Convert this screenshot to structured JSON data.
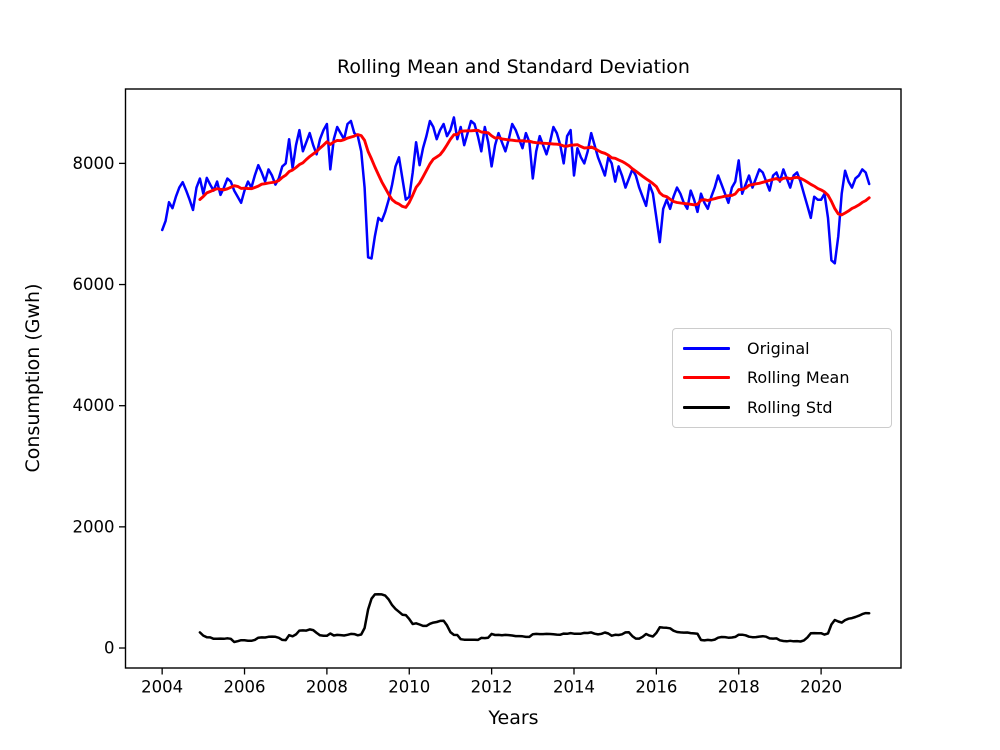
{
  "chart_data": {
    "type": "line",
    "title": "Rolling Mean and Standard Deviation",
    "xlabel": "Years",
    "ylabel": "Consumption (Gwh)",
    "grid": false,
    "legend_position": "center right",
    "xlim": [
      2003.11,
      2021.94
    ],
    "ylim": [
      -330,
      9228
    ],
    "x_ticks": [
      2004,
      2006,
      2008,
      2010,
      2012,
      2014,
      2016,
      2018,
      2020
    ],
    "y_ticks": [
      0,
      2000,
      4000,
      6000,
      8000
    ],
    "x_start": 2004.0,
    "x_step": "monthly",
    "rolling_window": 12,
    "axis_color": "#000000",
    "series": [
      {
        "name": "Original",
        "color": "#0000ff",
        "values": [
          6900,
          7050,
          7360,
          7260,
          7450,
          7600,
          7690,
          7550,
          7400,
          7230,
          7600,
          7750,
          7500,
          7760,
          7650,
          7550,
          7700,
          7480,
          7600,
          7750,
          7700,
          7550,
          7450,
          7350,
          7550,
          7700,
          7600,
          7800,
          7970,
          7850,
          7700,
          7900,
          7800,
          7650,
          7750,
          7950,
          8000,
          8400,
          7920,
          8300,
          8550,
          8200,
          8350,
          8500,
          8300,
          8150,
          8400,
          8550,
          8650,
          7900,
          8400,
          8600,
          8500,
          8400,
          8650,
          8700,
          8500,
          8450,
          8200,
          7600,
          6450,
          6430,
          6800,
          7100,
          7050,
          7200,
          7400,
          7650,
          7950,
          8100,
          7750,
          7400,
          7450,
          7850,
          8350,
          7970,
          8250,
          8450,
          8700,
          8600,
          8400,
          8550,
          8650,
          8450,
          8550,
          8760,
          8400,
          8600,
          8300,
          8500,
          8700,
          8650,
          8450,
          8200,
          8600,
          8350,
          7950,
          8300,
          8500,
          8350,
          8200,
          8400,
          8650,
          8550,
          8400,
          8250,
          8500,
          8350,
          7750,
          8200,
          8450,
          8300,
          8150,
          8350,
          8600,
          8500,
          8300,
          8000,
          8450,
          8550,
          7800,
          8250,
          8100,
          8000,
          8200,
          8500,
          8300,
          8100,
          7950,
          7800,
          8100,
          8000,
          7700,
          7950,
          7800,
          7600,
          7750,
          7900,
          7800,
          7600,
          7450,
          7300,
          7650,
          7500,
          7100,
          6700,
          7250,
          7400,
          7250,
          7450,
          7600,
          7500,
          7350,
          7250,
          7550,
          7400,
          7200,
          7500,
          7350,
          7250,
          7450,
          7600,
          7800,
          7650,
          7500,
          7350,
          7600,
          7700,
          8050,
          7500,
          7650,
          7800,
          7600,
          7750,
          7900,
          7850,
          7700,
          7550,
          7800,
          7850,
          7700,
          7900,
          7750,
          7600,
          7800,
          7850,
          7700,
          7500,
          7300,
          7100,
          7450,
          7400,
          7400,
          7500,
          7100,
          6400,
          6350,
          6800,
          7500,
          7880,
          7700,
          7600,
          7750,
          7800,
          7900,
          7850,
          7660
        ]
      },
      {
        "name": "Rolling Mean",
        "color": "#ff0000",
        "derived": "rolling_mean_of_series_0"
      },
      {
        "name": "Rolling Std",
        "color": "#000000",
        "derived": "rolling_std_of_series_0"
      }
    ]
  }
}
